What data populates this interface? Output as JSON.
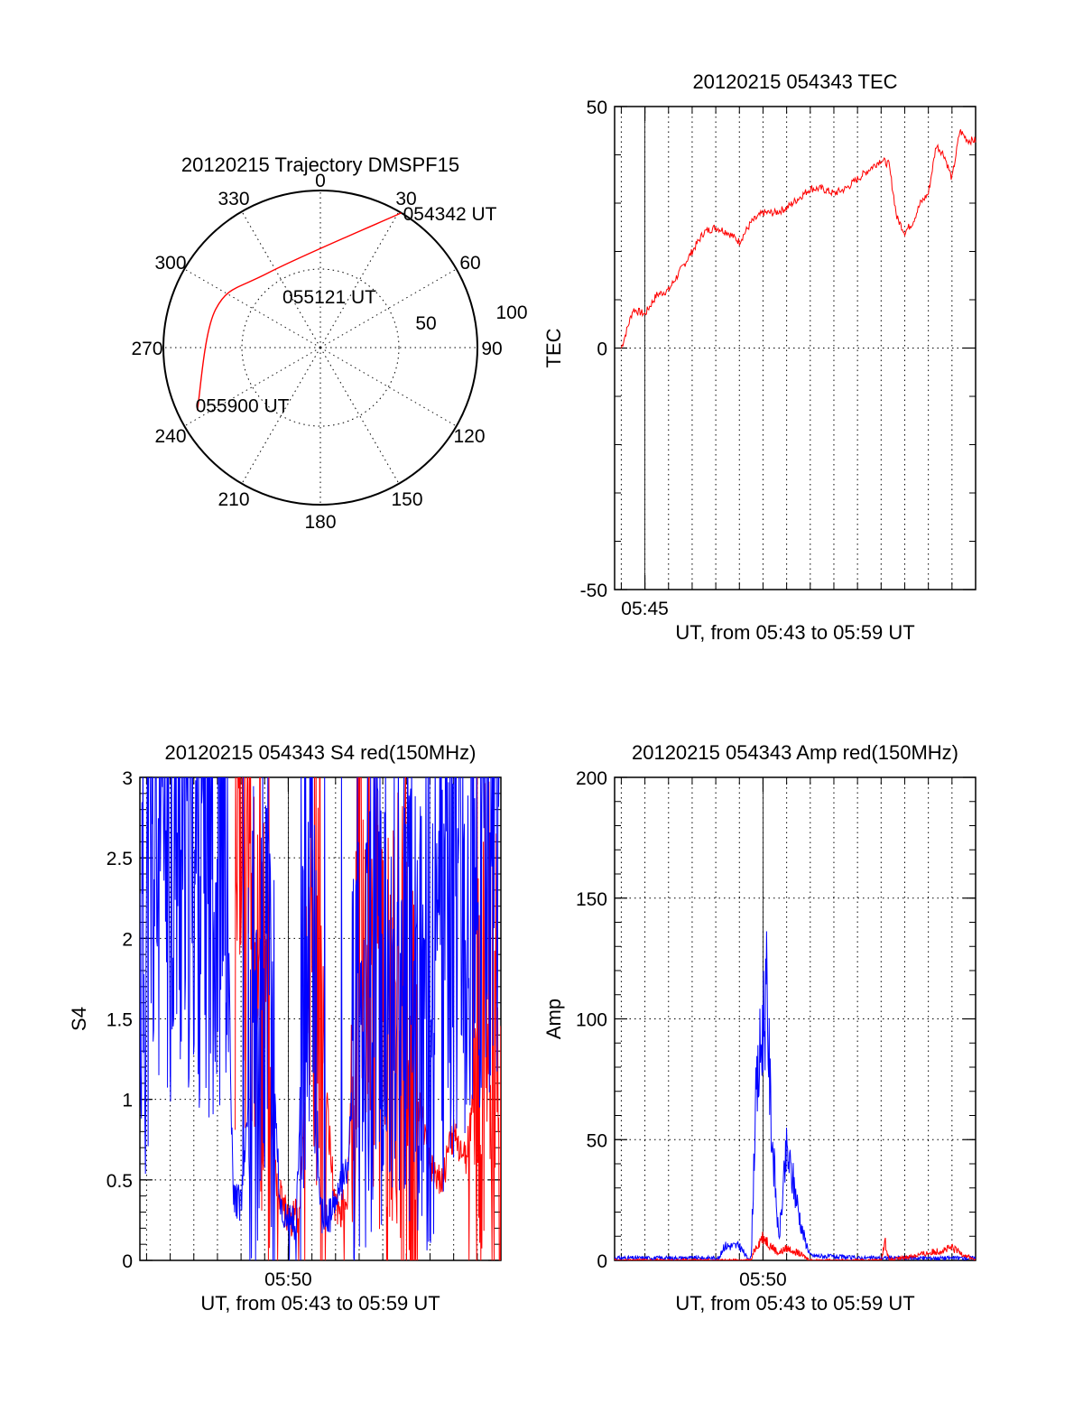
{
  "figure": {
    "polar": {
      "title": "20120215 Trajectory DMSPF15",
      "azimuth_labels": [
        "0",
        "30",
        "60",
        "90",
        "120",
        "150",
        "180",
        "210",
        "240",
        "270",
        "300",
        "330"
      ],
      "ring_labels": [
        "50",
        "100"
      ],
      "point_labels": [
        "054342 UT",
        "055121 UT",
        "055900 UT"
      ]
    },
    "tec": {
      "title": "20120215 054343 TEC",
      "ylabel": "TEC",
      "xlabel": "UT, from 05:43 to 05:59 UT",
      "ytick_labels": [
        "50",
        "0",
        "-50"
      ],
      "xtick_labels": [
        "05:45"
      ]
    },
    "s4": {
      "title": "20120215 054343 S4 red(150MHz)",
      "ylabel": "S4",
      "xlabel": "UT, from 05:43 to 05:59 UT",
      "ytick_labels": [
        "3",
        "2.5",
        "2",
        "1.5",
        "1",
        "0.5",
        "0"
      ],
      "xtick_labels": [
        "05:50"
      ]
    },
    "amp": {
      "title": "20120215 054343 Amp red(150MHz)",
      "ylabel": "Amp",
      "xlabel": "UT, from 05:43 to 05:59 UT",
      "ytick_labels": [
        "200",
        "150",
        "100",
        "50",
        "0"
      ],
      "xtick_labels": [
        "05:50"
      ]
    }
  },
  "colors": {
    "red": "#ff0000",
    "blue": "#0000ff",
    "axes": "#000000"
  },
  "chart_data": [
    {
      "type": "scatter",
      "title": "20120215 Trajectory DMSPF15",
      "coordinate_system": "polar",
      "r_rings": [
        50,
        100
      ],
      "azimuth_ticks_deg": [
        0,
        30,
        60,
        90,
        120,
        150,
        180,
        210,
        240,
        270,
        300,
        330
      ],
      "series": [
        {
          "color": "#ff0000",
          "points": [
            {
              "az": 31,
              "r": 100,
              "label": "054342 UT"
            },
            {
              "az": 325,
              "r": 58
            },
            {
              "az": 290,
              "r": 71
            },
            {
              "az": 243,
              "r": 88,
              "label": "055900 UT"
            }
          ]
        }
      ],
      "annotation": {
        "text": "055121 UT",
        "az": 340,
        "r": 55
      }
    },
    {
      "type": "line",
      "title": "20120215 054343 TEC",
      "xlabel": "UT, from 05:43 to 05:59 UT",
      "ylabel": "TEC",
      "xlim": [
        "05:43:43",
        "05:59:00"
      ],
      "ylim": [
        -50,
        50
      ],
      "x_ticks": [
        "05:45"
      ],
      "grid": true,
      "series": [
        {
          "color": "#ff0000",
          "x": [
            "05:44:00",
            "05:44:30",
            "05:45:00",
            "05:45:30",
            "05:46:00",
            "05:46:30",
            "05:47:00",
            "05:47:30",
            "05:48:00",
            "05:48:30",
            "05:49:00",
            "05:49:30",
            "05:50:00",
            "05:50:30",
            "05:51:00",
            "05:51:30",
            "05:52:00",
            "05:52:30",
            "05:53:00",
            "05:53:30",
            "05:54:00",
            "05:54:30",
            "05:54:45",
            "05:55:00",
            "05:55:20",
            "05:55:40",
            "05:56:00",
            "05:56:20",
            "05:56:40",
            "05:57:00",
            "05:57:20",
            "05:57:40",
            "05:58:00",
            "05:58:20",
            "05:58:40",
            "05:59:00"
          ],
          "y": [
            0,
            8,
            7,
            11,
            12,
            16,
            20,
            24,
            25,
            24,
            22,
            26,
            28,
            28,
            29,
            31,
            33,
            33,
            32,
            33,
            35,
            37,
            38,
            39,
            38,
            27,
            24,
            26,
            30,
            32,
            42,
            40,
            35,
            45,
            43,
            43
          ]
        }
      ]
    },
    {
      "type": "line",
      "title": "20120215 054343 S4 red(150MHz)",
      "xlabel": "UT, from 05:43 to 05:59 UT",
      "ylabel": "S4",
      "xlim": [
        "05:43:43",
        "05:59:00"
      ],
      "ylim": [
        0,
        3
      ],
      "x_ticks": [
        "05:50"
      ],
      "grid": true,
      "series": [
        {
          "color": "#0000ff",
          "x": [
            "05:43:43",
            "05:44:30",
            "05:45:30",
            "05:46:30",
            "05:47:00",
            "05:47:20",
            "05:47:40",
            "05:48:00",
            "05:48:30",
            "05:49:00",
            "05:49:20",
            "05:49:40",
            "05:50:00",
            "05:50:20",
            "05:50:40",
            "05:51:00",
            "05:51:20",
            "05:51:40",
            "05:52:00",
            "05:52:30",
            "05:53:00",
            "05:54:00",
            "05:55:00",
            "05:56:00",
            "05:56:30",
            "05:57:00",
            "05:57:30",
            "05:58:00",
            "05:58:30",
            "05:59:00"
          ],
          "y": [
            1.8,
            2.5,
            2.6,
            2.5,
            2.4,
            2.5,
            0.4,
            0.35,
            1.4,
            1.8,
            1.3,
            0.3,
            0.25,
            0.2,
            1.8,
            2.3,
            0.3,
            0.25,
            0.35,
            0.6,
            1.6,
            1.8,
            1.7,
            1.6,
            2.0,
            2.2,
            2.4,
            2.5,
            2.6,
            2.4
          ]
        },
        {
          "color": "#ff0000",
          "x": [
            "05:47:45",
            "05:48:00",
            "05:48:30",
            "05:49:00",
            "05:49:30",
            "05:50:00",
            "05:50:30",
            "05:51:00",
            "05:51:30",
            "05:52:00",
            "05:52:30",
            "05:53:00",
            "05:53:30",
            "05:54:00",
            "05:54:30",
            "05:55:00",
            "05:55:30",
            "05:56:00",
            "05:56:30",
            "05:57:00",
            "05:57:30",
            "05:58:00",
            "05:58:30",
            "05:59:00"
          ],
          "y": [
            2.0,
            2.5,
            2.2,
            1.5,
            0.5,
            0.25,
            0.3,
            2.2,
            1.2,
            0.3,
            0.35,
            2.5,
            2.0,
            1.3,
            1.5,
            1.2,
            1.0,
            0.6,
            0.5,
            0.8,
            0.6,
            1.2,
            1.6,
            1.0
          ]
        }
      ]
    },
    {
      "type": "line",
      "title": "20120215 054343 Amp red(150MHz)",
      "xlabel": "UT, from 05:43 to 05:59 UT",
      "ylabel": "Amp",
      "xlim": [
        "05:43:43",
        "05:59:00"
      ],
      "ylim": [
        0,
        200
      ],
      "x_ticks": [
        "05:50"
      ],
      "grid": true,
      "series": [
        {
          "color": "#0000ff",
          "x": [
            "05:43:43",
            "05:47:00",
            "05:48:10",
            "05:48:20",
            "05:49:00",
            "05:49:20",
            "05:49:30",
            "05:49:40",
            "05:50:00",
            "05:50:10",
            "05:50:20",
            "05:50:40",
            "05:51:00",
            "05:51:20",
            "05:51:40",
            "05:52:00",
            "05:54:00",
            "05:59:00"
          ],
          "y": [
            1,
            1,
            1,
            6,
            6,
            1,
            1,
            60,
            100,
            110,
            60,
            8,
            45,
            30,
            12,
            2,
            1,
            1
          ]
        },
        {
          "color": "#ff0000",
          "x": [
            "05:43:43",
            "05:49:30",
            "05:49:40",
            "05:50:00",
            "05:50:20",
            "05:50:40",
            "05:51:00",
            "05:51:20",
            "05:51:40",
            "05:52:00",
            "05:55:00",
            "05:55:10",
            "05:55:20",
            "05:57:00",
            "05:58:00",
            "05:59:00"
          ],
          "y": [
            0,
            0,
            5,
            10,
            6,
            3,
            5,
            4,
            2,
            0,
            0,
            8,
            0,
            3,
            5,
            0
          ]
        }
      ]
    }
  ]
}
